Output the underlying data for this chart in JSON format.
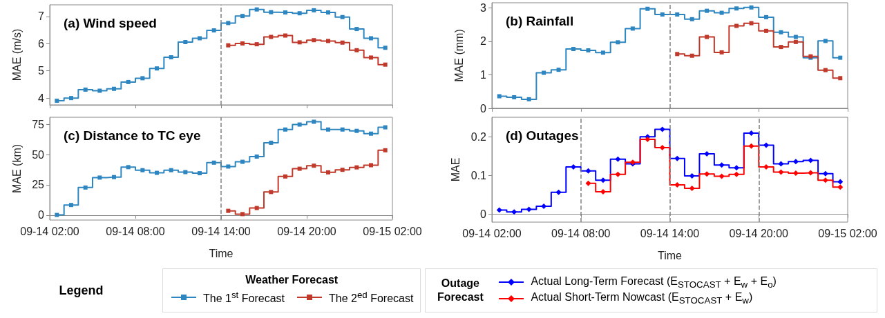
{
  "chart_data": [
    {
      "type": "step",
      "title": "(a) Wind speed",
      "ylabel": "MAE (m/s)",
      "legend": "bottom",
      "legend_title": "Weather Forecast",
      "annotations": [
        "Legend"
      ],
      "marker": "square",
      "tick_labels": "y",
      "grid": false,
      "xlim": [
        "--09-14T02:00",
        "--09-15T02:00"
      ],
      "xticks": [
        {
          "value": "--09-14T02:00",
          "label": null
        },
        {
          "value": "--09-14T08:00",
          "label": null
        },
        {
          "value": "--09-14T14:00",
          "label": null
        },
        {
          "value": "--09-14T20:00",
          "label": null
        },
        {
          "value": "--09-15T02:00",
          "label": null
        }
      ],
      "ylim": [
        3.75,
        7.43
      ],
      "yticks": [
        4,
        5,
        6,
        7
      ],
      "ref_lines": [
        {
          "axis": "x",
          "value": "--09-14T14:00",
          "color": "#808080",
          "line_style": "dashed"
        }
      ],
      "x": [
        "--09-14T02:30",
        "--09-14T03:30",
        "--09-14T04:30",
        "--09-14T05:30",
        "--09-14T06:30",
        "--09-14T07:30",
        "--09-14T08:30",
        "--09-14T09:30",
        "--09-14T10:30",
        "--09-14T11:30",
        "--09-14T12:30",
        "--09-14T13:30",
        "--09-14T14:30",
        "--09-14T15:30",
        "--09-14T16:30",
        "--09-14T17:30",
        "--09-14T18:30",
        "--09-14T19:30",
        "--09-14T20:30",
        "--09-14T21:30",
        "--09-14T22:30",
        "--09-14T23:30",
        "--09-15T00:30",
        "--09-15T01:30"
      ],
      "series": [
        {
          "name": "The 1$^{st}$ Forecast",
          "color": "#2e86c1",
          "values": [
            3.9,
            4.0,
            4.31,
            4.27,
            4.34,
            4.59,
            4.73,
            5.09,
            5.5,
            6.06,
            6.2,
            6.49,
            6.76,
            7.02,
            7.26,
            7.16,
            7.15,
            7.12,
            7.23,
            7.15,
            6.98,
            6.54,
            6.2,
            5.85
          ]
        },
        {
          "name": "The 2$^{ed}$ Forecast",
          "color": "#c0392b",
          "x": [
            "--09-14T14:30",
            "--09-14T15:30",
            "--09-14T16:30",
            "--09-14T17:30",
            "--09-14T18:30",
            "--09-14T19:30",
            "--09-14T20:30",
            "--09-14T21:30",
            "--09-14T22:30",
            "--09-14T23:30",
            "--09-15T00:30",
            "--09-15T01:30"
          ],
          "values": [
            5.94,
            6.01,
            5.98,
            6.25,
            6.3,
            6.05,
            6.13,
            6.1,
            6.04,
            5.76,
            5.49,
            5.23
          ]
        }
      ]
    },
    {
      "type": "step",
      "title": "(b) Rainfall",
      "ylabel": "MAE (mm)",
      "marker": "square",
      "tick_labels": "y",
      "grid": false,
      "xlim": [
        "--09-14T02:00",
        "--09-15T02:00"
      ],
      "xticks": [
        {
          "value": "--09-14T02:00",
          "label": null
        },
        {
          "value": "--09-14T08:00",
          "label": null
        },
        {
          "value": "--09-14T14:00",
          "label": null
        },
        {
          "value": "--09-14T20:00",
          "label": null
        },
        {
          "value": "--09-15T02:00",
          "label": null
        }
      ],
      "ylim": [
        0,
        3.15
      ],
      "yticks": [
        0,
        1,
        2,
        3
      ],
      "ref_lines": [
        {
          "axis": "x",
          "value": "--09-14T14:00",
          "color": "#808080",
          "line_style": "dashed"
        }
      ],
      "x": [
        "--09-14T02:30",
        "--09-14T03:30",
        "--09-14T04:30",
        "--09-14T05:30",
        "--09-14T06:30",
        "--09-14T07:30",
        "--09-14T08:30",
        "--09-14T09:30",
        "--09-14T10:30",
        "--09-14T11:30",
        "--09-14T12:30",
        "--09-14T13:30",
        "--09-14T14:30",
        "--09-14T15:30",
        "--09-14T16:30",
        "--09-14T17:30",
        "--09-14T18:30",
        "--09-14T19:30",
        "--09-14T20:30",
        "--09-14T21:30",
        "--09-14T22:30",
        "--09-14T23:30",
        "--09-15T00:30",
        "--09-15T01:30"
      ],
      "series": [
        {
          "color": "#2e86c1",
          "values": [
            0.36,
            0.33,
            0.27,
            1.06,
            1.15,
            1.77,
            1.73,
            1.66,
            1.97,
            2.38,
            2.97,
            2.8,
            2.8,
            2.66,
            2.91,
            2.85,
            2.98,
            3.01,
            2.72,
            2.27,
            2.13,
            1.51,
            2.01,
            1.51
          ]
        },
        {
          "color": "#c0392b",
          "x": [
            "--09-14T14:30",
            "--09-14T15:30",
            "--09-14T16:30",
            "--09-14T17:30",
            "--09-14T18:30",
            "--09-14T19:30",
            "--09-14T20:30",
            "--09-14T21:30",
            "--09-14T22:30",
            "--09-14T23:30",
            "--09-15T00:30",
            "--09-15T01:30"
          ],
          "values": [
            1.62,
            1.57,
            2.13,
            1.67,
            2.46,
            2.54,
            2.31,
            1.83,
            1.98,
            1.55,
            1.14,
            0.9
          ]
        }
      ]
    },
    {
      "type": "step",
      "title": "(c) Distance to TC eye",
      "ylabel": "MAE (km)",
      "xlabel": "Time",
      "marker": "square",
      "grid": false,
      "xlim": [
        "--09-14T02:00",
        "--09-15T02:00"
      ],
      "xticks": [
        {
          "value": "--09-14T02:00",
          "label": "09-14 02:00"
        },
        {
          "value": "--09-14T08:00",
          "label": "09-14 08:00"
        },
        {
          "value": "--09-14T14:00",
          "label": "09-14 14:00"
        },
        {
          "value": "--09-14T20:00",
          "label": "09-14 20:00"
        },
        {
          "value": "--09-15T02:00",
          "label": "09-15 02:00"
        }
      ],
      "ylim": [
        -4,
        80.7
      ],
      "yticks": [
        0,
        25,
        50,
        75
      ],
      "ref_lines": [
        {
          "axis": "x",
          "value": "--09-14T14:00",
          "color": "#808080",
          "line_style": "dashed"
        }
      ],
      "x": [
        "--09-14T02:30",
        "--09-14T03:30",
        "--09-14T04:30",
        "--09-14T05:30",
        "--09-14T06:30",
        "--09-14T07:30",
        "--09-14T08:30",
        "--09-14T09:30",
        "--09-14T10:30",
        "--09-14T11:30",
        "--09-14T12:30",
        "--09-14T13:30",
        "--09-14T14:30",
        "--09-14T15:30",
        "--09-14T16:30",
        "--09-14T17:30",
        "--09-14T18:30",
        "--09-14T19:30",
        "--09-14T20:30",
        "--09-14T21:30",
        "--09-14T22:30",
        "--09-14T23:30",
        "--09-15T00:30",
        "--09-15T01:30"
      ],
      "series": [
        {
          "color": "#2e86c1",
          "values": [
            0.2,
            8.4,
            22.8,
            31,
            31.4,
            39.6,
            37.1,
            34.9,
            37.1,
            35.5,
            34.6,
            43.3,
            40.1,
            44,
            48.3,
            59.7,
            70.6,
            74.7,
            77,
            70.6,
            70.6,
            69.5,
            67.2,
            72.4
          ]
        },
        {
          "color": "#c0392b",
          "x": [
            "--09-14T14:30",
            "--09-14T15:30",
            "--09-14T16:30",
            "--09-14T17:30",
            "--09-14T18:30",
            "--09-14T19:30",
            "--09-14T20:30",
            "--09-14T21:30",
            "--09-14T22:30",
            "--09-14T23:30",
            "--09-15T00:30",
            "--09-15T01:30"
          ],
          "values": [
            3.6,
            0.9,
            5.9,
            19.1,
            31.9,
            38.3,
            40.8,
            35.3,
            37.4,
            39.4,
            41.2,
            53.5
          ]
        }
      ]
    },
    {
      "type": "step",
      "title": "(d) Outages",
      "ylabel": "MAE",
      "xlabel": "Time",
      "legend": "bottom",
      "legend_title": "Outage Forecast",
      "marker": "diamond",
      "grid": false,
      "xlim": [
        "--09-14T02:00",
        "--09-15T02:00"
      ],
      "xticks": [
        {
          "value": "--09-14T02:00",
          "label": "09-14 02:00"
        },
        {
          "value": "--09-14T08:00",
          "label": "09-14 08:00"
        },
        {
          "value": "--09-14T14:00",
          "label": "09-14 14:00"
        },
        {
          "value": "--09-14T20:00",
          "label": "09-14 20:00"
        },
        {
          "value": "--09-15T02:00",
          "label": "09-15 02:00"
        }
      ],
      "ylim": [
        -0.02,
        0.25
      ],
      "yticks": [
        0.0,
        0.1,
        0.2
      ],
      "ref_lines": [
        {
          "axis": "x",
          "value": "--09-14T08:00",
          "color": "#808080",
          "line_style": "dashed"
        },
        {
          "axis": "x",
          "value": "--09-14T14:00",
          "color": "#808080",
          "line_style": "dashed"
        },
        {
          "axis": "x",
          "value": "--09-14T20:00",
          "color": "#808080",
          "line_style": "dashed"
        }
      ],
      "x": [
        "--09-14T02:30",
        "--09-14T03:30",
        "--09-14T04:30",
        "--09-14T05:30",
        "--09-14T06:30",
        "--09-14T07:30",
        "--09-14T08:30",
        "--09-14T09:30",
        "--09-14T10:30",
        "--09-14T11:30",
        "--09-14T12:30",
        "--09-14T13:30",
        "--09-14T14:30",
        "--09-14T15:30",
        "--09-14T16:30",
        "--09-14T17:30",
        "--09-14T18:30",
        "--09-14T19:30",
        "--09-14T20:30",
        "--09-14T21:30",
        "--09-14T22:30",
        "--09-14T23:30",
        "--09-15T00:30",
        "--09-15T01:30"
      ],
      "series": [
        {
          "name": "Actual Long-Term Forecast (E$_{STOCAST}$ + E$_{w}$ + E$_{o}$)",
          "color": "#0000ff",
          "values": [
            0.011,
            0.006,
            0.013,
            0.021,
            0.057,
            0.122,
            0.112,
            0.088,
            0.142,
            0.13,
            0.2,
            0.219,
            0.144,
            0.099,
            0.156,
            0.127,
            0.12,
            0.209,
            0.178,
            0.13,
            0.136,
            0.139,
            0.105,
            0.084
          ]
        },
        {
          "name": "Actual Short-Term Nowcast (E$_{STOCAST}$ + E$_{w}$)",
          "color": "#ff0000",
          "x": [
            "--09-14T08:30",
            "--09-14T09:30",
            "--09-14T10:30",
            "--09-14T11:30",
            "--09-14T12:30",
            "--09-14T13:30",
            "--09-14T14:30",
            "--09-14T15:30",
            "--09-14T16:30",
            "--09-14T17:30",
            "--09-14T18:30",
            "--09-14T19:30",
            "--09-14T20:30",
            "--09-14T21:30",
            "--09-14T22:30",
            "--09-14T23:30",
            "--09-15T00:30",
            "--09-15T01:30"
          ],
          "values": [
            0.08,
            0.058,
            0.103,
            0.134,
            0.193,
            0.172,
            0.076,
            0.067,
            0.104,
            0.098,
            0.103,
            0.176,
            0.122,
            0.109,
            0.106,
            0.107,
            0.088,
            0.07
          ]
        }
      ]
    }
  ]
}
